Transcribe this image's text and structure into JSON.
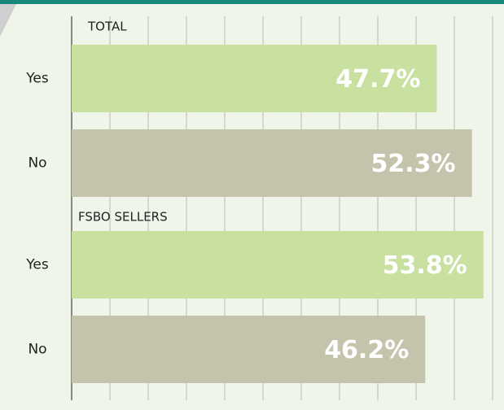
{
  "chart_data": {
    "type": "hbar",
    "groups": [
      {
        "name": "TOTAL",
        "categories": [
          "Yes",
          "No"
        ],
        "values": [
          47.7,
          52.3
        ],
        "value_labels": [
          "47.7%",
          "52.3%"
        ]
      },
      {
        "name": "FSBO SELLERS",
        "categories": [
          "Yes",
          "No"
        ],
        "values": [
          53.8,
          46.2
        ],
        "value_labels": [
          "53.8%",
          "46.2%"
        ]
      }
    ],
    "colors": [
      "#c8e0a0",
      "#c4c3ab"
    ],
    "xlim": [
      0,
      55
    ],
    "xticks": [
      0,
      5,
      10,
      15,
      20,
      25,
      30,
      35,
      40,
      45,
      50,
      55
    ],
    "grid": true
  }
}
